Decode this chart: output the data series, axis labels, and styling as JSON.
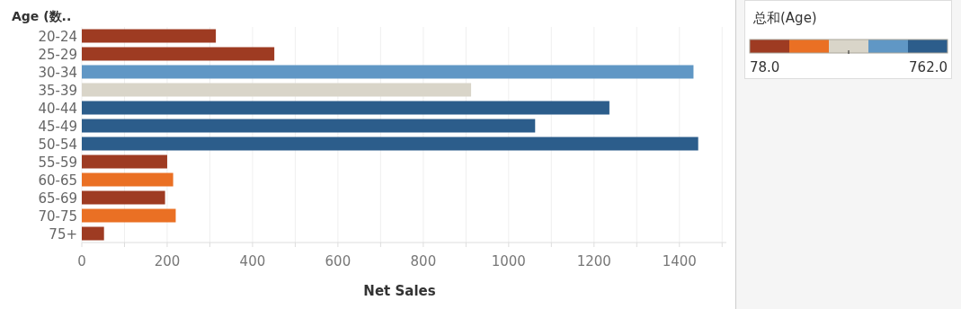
{
  "chart_data": {
    "type": "bar",
    "orientation": "horizontal",
    "ylabel": "Age (数..",
    "xlabel": "Net Sales",
    "clabel": "总和(Age)",
    "categories": [
      "20-24",
      "25-29",
      "30-34",
      "35-39",
      "40-44",
      "45-49",
      "50-54",
      "55-59",
      "60-65",
      "65-69",
      "70-75",
      "75+"
    ],
    "values": [
      314,
      451,
      1433,
      912,
      1236,
      1062,
      1444,
      200,
      214,
      195,
      220,
      52
    ],
    "colors": [
      "#9e3b22",
      "#9e3b22",
      "#6097c5",
      "#d9d5c9",
      "#2c5d8b",
      "#2c5d8b",
      "#2c5d8b",
      "#9e3b22",
      "#ea7024",
      "#9e3b22",
      "#ea7024",
      "#9e3b22"
    ],
    "xlim": [
      0,
      1510
    ],
    "xticks": [
      0,
      {
        "value": 100,
        "label": null
      },
      200,
      {
        "value": 300,
        "label": null
      },
      400,
      {
        "value": 500,
        "label": null
      },
      600,
      {
        "value": 700,
        "label": null
      },
      800,
      {
        "value": 900,
        "label": null
      },
      1000,
      {
        "value": 1100,
        "label": null
      },
      1200,
      {
        "value": 1300,
        "label": null
      },
      1400,
      {
        "value": 1500,
        "label": null
      }
    ],
    "grid": "x",
    "clim": [
      78,
      762
    ],
    "cticks": [
      {
        "value": 78,
        "label": "78.0"
      },
      {
        "value": 420,
        "label": null
      },
      {
        "value": 762,
        "label": "762.0"
      }
    ]
  }
}
